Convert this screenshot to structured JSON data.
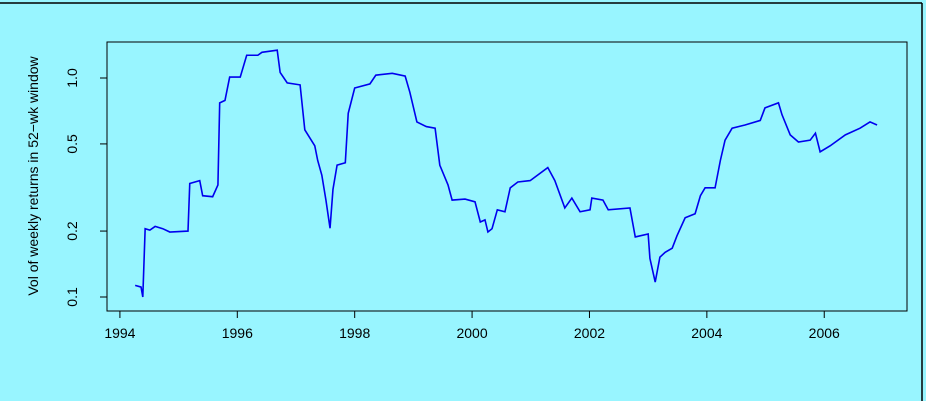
{
  "chart_data": {
    "type": "line",
    "ylabel": "Vol of weekly returns in 52−wk window",
    "log_y": true,
    "background": "#98f5ff",
    "x": [
      1994.26,
      1994.36,
      1994.39,
      1994.43,
      1994.51,
      1994.6,
      1994.73,
      1994.85,
      1995.16,
      1995.19,
      1995.36,
      1995.41,
      1995.58,
      1995.67,
      1995.7,
      1995.79,
      1995.87,
      1996.05,
      1996.16,
      1996.35,
      1996.42,
      1996.68,
      1996.73,
      1996.85,
      1997.07,
      1997.15,
      1997.32,
      1997.37,
      1997.44,
      1997.51,
      1997.58,
      1997.63,
      1997.7,
      1997.84,
      1997.89,
      1998.0,
      1998.26,
      1998.36,
      1998.64,
      1998.86,
      1998.94,
      1999.06,
      1999.22,
      1999.37,
      1999.45,
      1999.59,
      1999.66,
      1999.88,
      2000.05,
      2000.14,
      2000.22,
      2000.27,
      2000.34,
      2000.43,
      2000.56,
      2000.65,
      2000.78,
      2000.99,
      2001.29,
      2001.41,
      2001.58,
      2001.7,
      2001.84,
      2002.01,
      2002.04,
      2002.23,
      2002.32,
      2002.69,
      2002.78,
      2003.0,
      2003.03,
      2003.12,
      2003.2,
      2003.29,
      2003.41,
      2003.49,
      2003.63,
      2003.8,
      2003.89,
      2003.97,
      2004.14,
      2004.23,
      2004.31,
      2004.43,
      2004.65,
      2004.91,
      2004.99,
      2005.22,
      2005.28,
      2005.42,
      2005.56,
      2005.76,
      2005.85,
      2005.93,
      2006.1,
      2006.36,
      2006.61,
      2006.78,
      2006.9
    ],
    "series": [
      {
        "color": "#0000ee",
        "values": [
          0.113,
          0.111,
          0.1,
          0.205,
          0.202,
          0.21,
          0.205,
          0.198,
          0.2,
          0.33,
          0.34,
          0.29,
          0.287,
          0.325,
          0.77,
          0.79,
          1.01,
          1.01,
          1.27,
          1.27,
          1.31,
          1.34,
          1.06,
          0.95,
          0.93,
          0.58,
          0.49,
          0.42,
          0.36,
          0.277,
          0.206,
          0.31,
          0.4,
          0.41,
          0.69,
          0.9,
          0.94,
          1.03,
          1.05,
          1.02,
          0.86,
          0.63,
          0.6,
          0.59,
          0.4,
          0.325,
          0.277,
          0.28,
          0.272,
          0.22,
          0.225,
          0.198,
          0.205,
          0.25,
          0.245,
          0.315,
          0.335,
          0.34,
          0.39,
          0.34,
          0.255,
          0.283,
          0.245,
          0.25,
          0.283,
          0.277,
          0.25,
          0.255,
          0.188,
          0.194,
          0.15,
          0.117,
          0.152,
          0.16,
          0.167,
          0.19,
          0.23,
          0.24,
          0.29,
          0.315,
          0.315,
          0.42,
          0.52,
          0.59,
          0.61,
          0.64,
          0.73,
          0.77,
          0.68,
          0.55,
          0.51,
          0.52,
          0.56,
          0.46,
          0.49,
          0.55,
          0.59,
          0.63,
          0.61
        ]
      }
    ],
    "xlim": [
      1993.78,
      2007.41
    ],
    "xticks": [
      1994,
      1996,
      1998,
      2000,
      2002,
      2004,
      2006
    ],
    "ylim": [
      0.0863,
      1.46
    ],
    "yticks": [
      0.1,
      0.2,
      0.5,
      {
        "value": 1,
        "label": "1.0"
      }
    ]
  }
}
